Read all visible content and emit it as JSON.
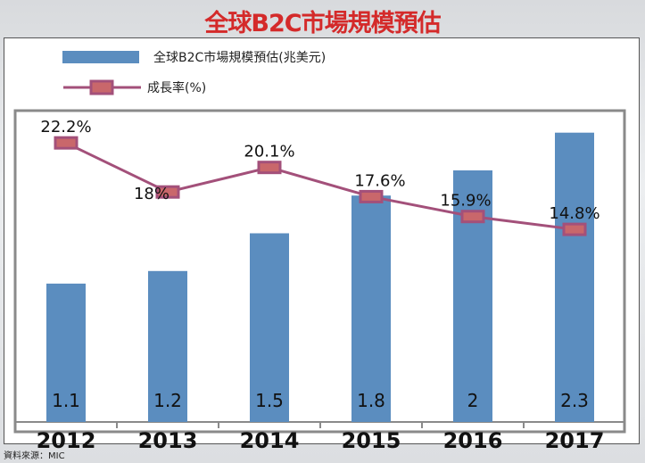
{
  "chart_data": {
    "type": "bar",
    "title": "全球B2C市場規模預估",
    "categories": [
      "2012",
      "2013",
      "2014",
      "2015",
      "2016",
      "2017"
    ],
    "series": [
      {
        "name": "全球B2C市場規模預估(兆美元)",
        "type": "bar",
        "values": [
          1.1,
          1.2,
          1.5,
          1.8,
          2,
          2.3
        ],
        "labels": [
          "1.1",
          "1.2",
          "1.5",
          "1.8",
          "2",
          "2.3"
        ],
        "color": "#5b8dbf"
      },
      {
        "name": "成長率(%)",
        "type": "line",
        "values": [
          22.2,
          18,
          20.1,
          17.6,
          15.9,
          14.8
        ],
        "labels": [
          "22.2%",
          "18%",
          "20.1%",
          "17.6%",
          "15.9%",
          "14.8%"
        ],
        "color": "#a3507a",
        "marker_fill": "#c9676b"
      }
    ],
    "legend": "top-left",
    "source": "資料來源：MIC"
  }
}
